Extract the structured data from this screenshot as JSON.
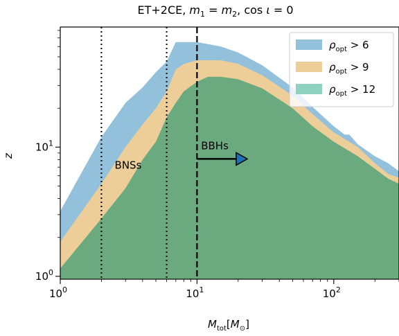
{
  "chart_data": {
    "type": "area",
    "title": "ET+2CE, m1 = m2, cos ι = 0",
    "xlabel": "Mtot[M⊙]",
    "ylabel": "z",
    "xscale": "log",
    "yscale": "log",
    "xlim": [
      1,
      300
    ],
    "ylim": [
      0.95,
      85
    ],
    "x_ticks": [
      {
        "value": 1,
        "base": "10",
        "exp": "0"
      },
      {
        "value": 10,
        "base": "10",
        "exp": "1"
      },
      {
        "value": 100,
        "base": "10",
        "exp": "2"
      }
    ],
    "y_ticks": [
      {
        "value": 1,
        "base": "10",
        "exp": "0"
      },
      {
        "value": 10,
        "base": "10",
        "exp": "1"
      }
    ],
    "legend_position": "top-right",
    "series": [
      {
        "name": "ρopt > 6",
        "label_main": "ρ",
        "label_sub": "opt",
        "label_rest": " > 6",
        "color": "#93c1dc",
        "x": [
          1,
          2,
          3,
          4,
          5,
          6,
          7,
          8,
          10,
          15,
          20,
          30,
          50,
          70,
          100,
          120,
          130,
          150,
          200,
          250,
          300
        ],
        "y": [
          3.2,
          12,
          22,
          29,
          38,
          46,
          65,
          65,
          65,
          60,
          54,
          43,
          29,
          20.5,
          14.5,
          12.5,
          12.5,
          10.5,
          8.5,
          7.5,
          6.5
        ]
      },
      {
        "name": "ρopt > 9",
        "label_main": "ρ",
        "label_sub": "opt",
        "label_rest": " > 9",
        "color": "#edce98",
        "x": [
          1,
          2,
          3,
          4,
          5,
          6,
          7,
          8,
          10,
          15,
          20,
          30,
          50,
          70,
          100,
          150,
          200,
          250,
          300
        ],
        "y": [
          1.85,
          5.2,
          10,
          15,
          20,
          27,
          40,
          44,
          47,
          47,
          44,
          36,
          25,
          18,
          13,
          10,
          7.5,
          6.2,
          5.8
        ]
      },
      {
        "name": "ρopt > 12",
        "label_main": "ρ",
        "label_sub": "opt",
        "label_rest": " > 12",
        "color": "#6aaa7e",
        "legend_color": "#8fd2c0",
        "x": [
          1,
          2,
          3,
          4,
          5,
          6,
          7,
          8,
          10,
          12,
          15,
          20,
          30,
          50,
          70,
          100,
          150,
          200,
          250,
          300
        ],
        "y": [
          1.15,
          2.8,
          4.8,
          8,
          11,
          17,
          22,
          27,
          32,
          35,
          35,
          33.5,
          28.5,
          20,
          14.5,
          11,
          8.5,
          6.8,
          5.7,
          5.2
        ]
      }
    ],
    "vlines": [
      {
        "x": 2,
        "style": "dotted"
      },
      {
        "x": 6,
        "style": "dotted"
      },
      {
        "x": 10,
        "style": "dashed"
      }
    ],
    "annotations": [
      {
        "text": "BNSs",
        "x": 2.5,
        "y": 6.8
      },
      {
        "text": "BBHs",
        "x": 10.7,
        "y": 9.6
      }
    ],
    "arrow": {
      "x_start": 10,
      "x_end": 22,
      "y": 8.1,
      "color": "#1f6fb5"
    }
  }
}
